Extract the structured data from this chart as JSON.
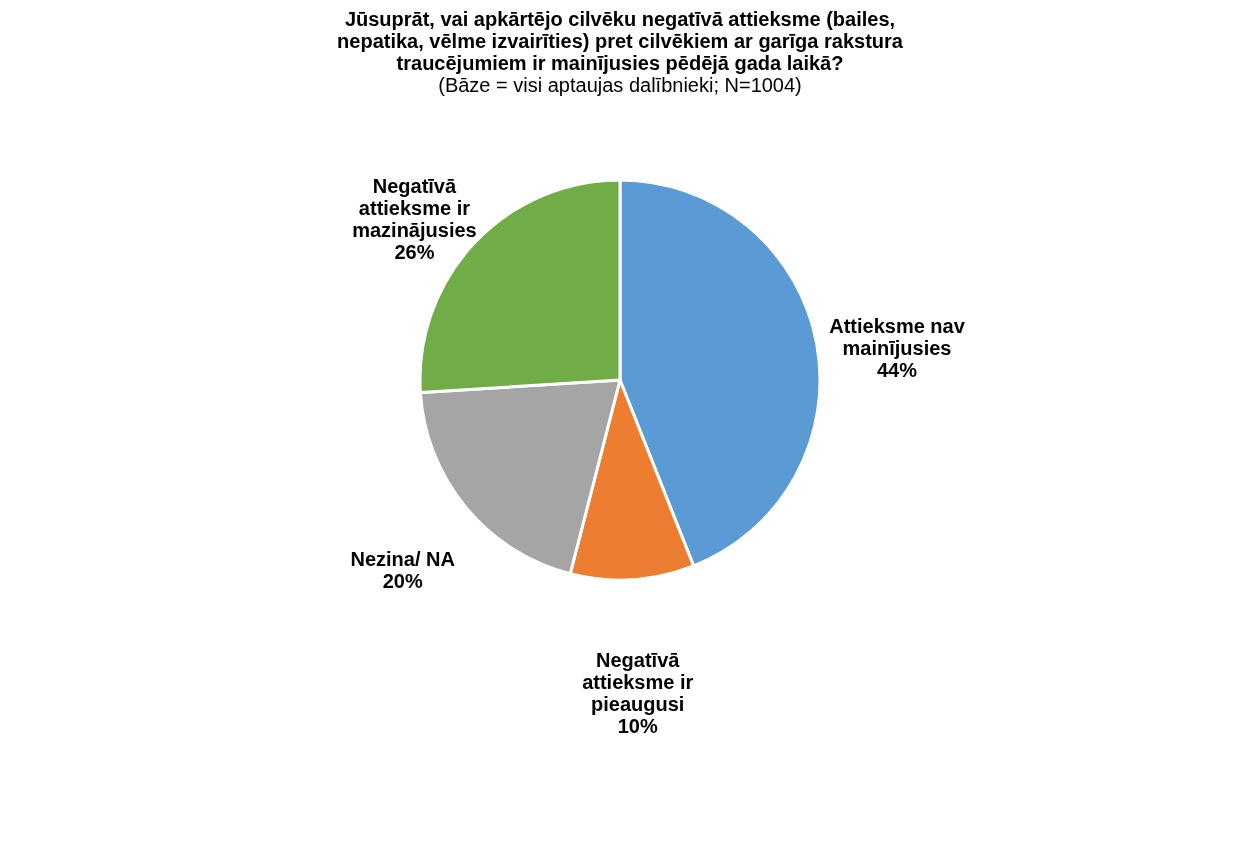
{
  "chart_data": {
    "type": "pie",
    "title": "Jūsuprāt, vai apkārtējo cilvēku negatīvā attieksme (bailes, nepatika, vēlme izvairīties) pret cilvēkiem ar garīga rakstura traucējumiem ir mainījusies pēdējā gada laikā?",
    "subtitle": "(Bāze = visi aptaujas dalībnieki; N=1004)",
    "categories": [
      "Attieksme nav mainījusies",
      "Negatīvā attieksme ir pieaugusi",
      "Nezina/ NA",
      "Negatīvā attieksme ir mazinājusies"
    ],
    "values": [
      44,
      10,
      20,
      26
    ],
    "colors": [
      "#5b9bd5",
      "#ed7d31",
      "#a5a5a5",
      "#70ad47"
    ],
    "value_labels": [
      "44%",
      "10%",
      "20%",
      "26%"
    ],
    "legend": false
  }
}
